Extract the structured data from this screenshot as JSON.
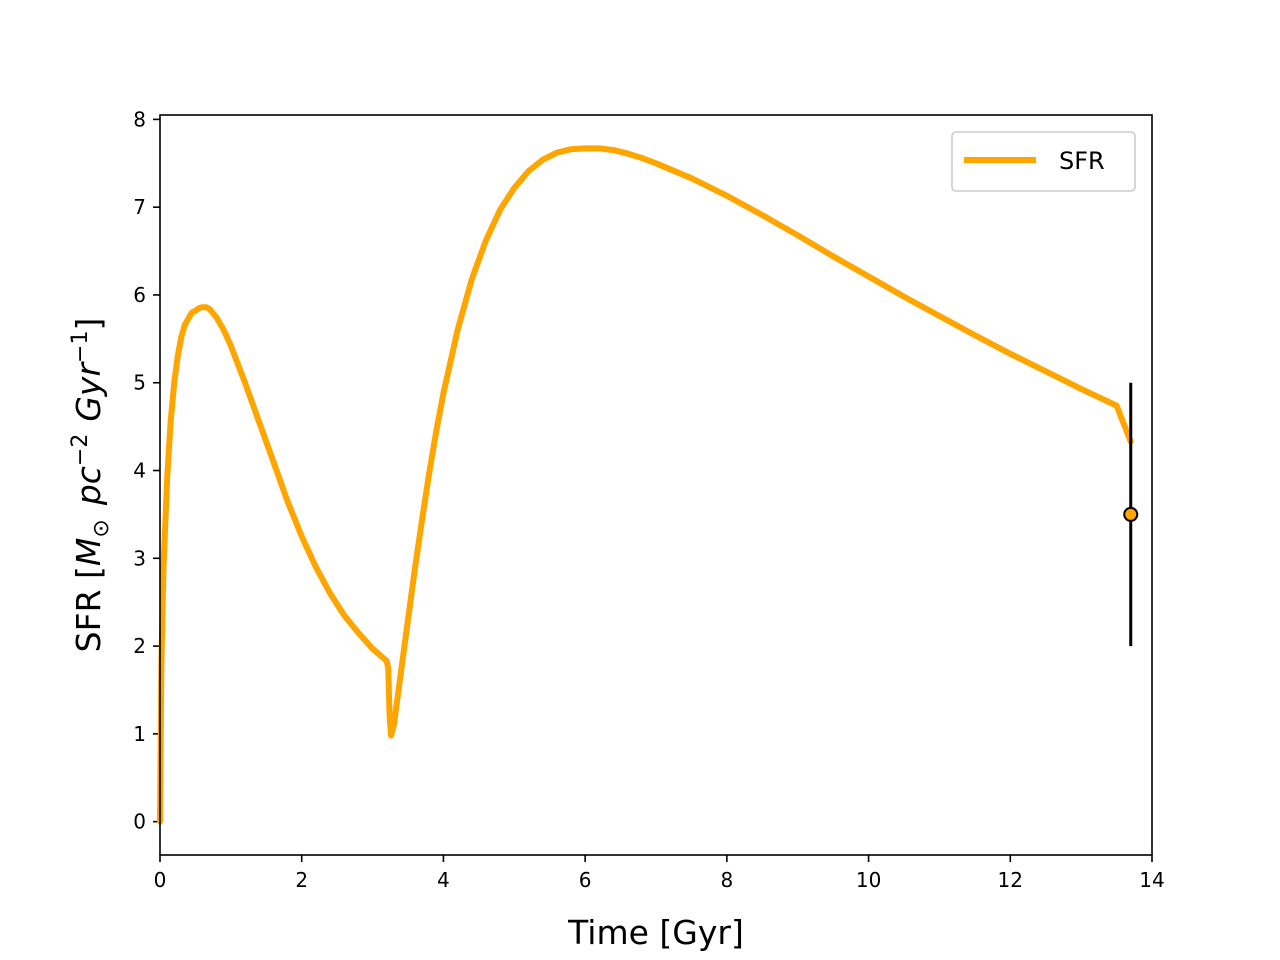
{
  "chart_data": {
    "type": "line",
    "title": "",
    "xlabel": "Time [Gyr]",
    "ylabel": {
      "prefix": "SFR [",
      "msun": "M",
      "sun_symbol": "⊙",
      "pc": "pc",
      "pc_exp": "−2",
      "gyr": "Gyr",
      "gyr_exp": "−1",
      "suffix": "]"
    },
    "xlim": [
      0,
      14
    ],
    "ylim": [
      -0.38,
      8.05
    ],
    "xticks": [
      0,
      2,
      4,
      6,
      8,
      10,
      12,
      14
    ],
    "yticks": [
      0,
      1,
      2,
      3,
      4,
      5,
      6,
      7,
      8
    ],
    "grid": false,
    "legend_position": "upper-right",
    "series": [
      {
        "name": "SFR",
        "color": "#ffa500",
        "x": [
          0,
          0.02,
          0.05,
          0.1,
          0.15,
          0.2,
          0.25,
          0.3,
          0.35,
          0.4,
          0.45,
          0.5,
          0.55,
          0.6,
          0.65,
          0.7,
          0.8,
          0.9,
          1.0,
          1.2,
          1.4,
          1.6,
          1.8,
          2.0,
          2.2,
          2.4,
          2.6,
          2.8,
          3.0,
          3.2,
          3.22,
          3.24,
          3.26,
          3.3,
          3.35,
          3.4,
          3.5,
          3.6,
          3.7,
          3.8,
          3.9,
          4.0,
          4.2,
          4.4,
          4.6,
          4.8,
          5.0,
          5.2,
          5.4,
          5.6,
          5.8,
          6.0,
          6.2,
          6.4,
          6.6,
          6.8,
          7.0,
          7.5,
          8.0,
          8.5,
          9.0,
          9.5,
          10.0,
          10.5,
          11.0,
          11.5,
          12.0,
          12.5,
          13.0,
          13.5,
          13.7
        ],
        "y": [
          0,
          1.8,
          2.9,
          3.9,
          4.55,
          5.0,
          5.3,
          5.52,
          5.66,
          5.73,
          5.8,
          5.82,
          5.85,
          5.86,
          5.86,
          5.84,
          5.74,
          5.6,
          5.42,
          5.0,
          4.55,
          4.1,
          3.65,
          3.25,
          2.9,
          2.6,
          2.35,
          2.15,
          1.97,
          1.83,
          1.75,
          1.2,
          0.98,
          1.1,
          1.4,
          1.7,
          2.3,
          2.9,
          3.45,
          3.98,
          4.45,
          4.88,
          5.6,
          6.18,
          6.62,
          6.97,
          7.22,
          7.41,
          7.54,
          7.62,
          7.66,
          7.67,
          7.67,
          7.65,
          7.61,
          7.56,
          7.5,
          7.33,
          7.13,
          6.91,
          6.68,
          6.44,
          6.21,
          5.98,
          5.76,
          5.54,
          5.33,
          5.13,
          4.93,
          4.74,
          4.33
        ]
      }
    ],
    "observation": {
      "x": 13.7,
      "y": 3.5,
      "yerr_low": 2.0,
      "yerr_high": 5.0,
      "marker_color": "#ffa500",
      "edge_color": "#000000"
    }
  }
}
